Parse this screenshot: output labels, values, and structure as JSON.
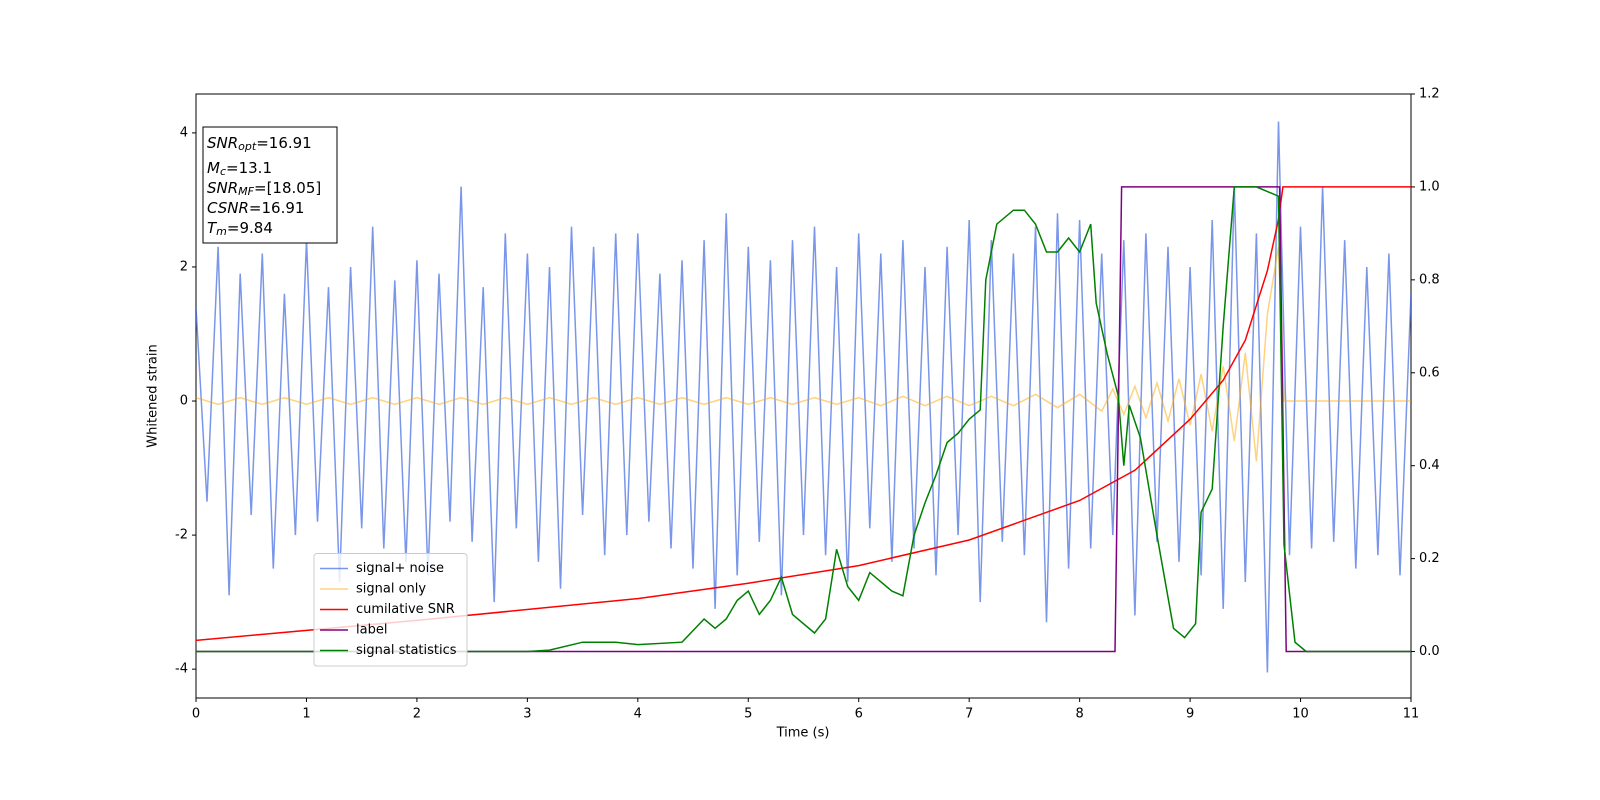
{
  "chart_data": {
    "type": "line",
    "x_label": "Time (s)",
    "y_label": "Whitened strain",
    "xlim": [
      0,
      11
    ],
    "xticks": [
      0,
      1,
      2,
      3,
      4,
      5,
      6,
      7,
      8,
      9,
      10,
      11
    ],
    "ylim": [
      -4.43,
      4.58
    ],
    "yticks": [
      -4,
      -2,
      0,
      2,
      4
    ],
    "y2lim": [
      -0.1,
      1.2
    ],
    "y2ticks": [
      {
        "value": 0,
        "label": "0.0"
      },
      0.2,
      0.4,
      0.6,
      0.8,
      {
        "value": 1,
        "label": "1.0"
      },
      1.2
    ],
    "legend": "lower left",
    "annotation": [
      {
        "name": "SNR",
        "sub": "opt",
        "text": "=16.91"
      },
      {
        "name": "M",
        "sub": "c",
        "text": "=13.1"
      },
      {
        "name": "SNR",
        "sub": "MF",
        "text": "=[18.05]"
      },
      {
        "name": "CSNR",
        "text": "=16.91"
      },
      {
        "name": "T",
        "sub": "m",
        "text": "=9.84"
      }
    ],
    "series": [
      {
        "name": "signal+ noise",
        "color": "#4169e1",
        "alpha": 0.7,
        "axis": "y",
        "x": [
          0,
          0.1,
          0.2,
          0.3,
          0.4,
          0.5,
          0.6,
          0.7,
          0.8,
          0.9,
          1,
          1.1,
          1.2,
          1.3,
          1.4,
          1.5,
          1.6,
          1.7,
          1.8,
          1.9,
          2,
          2.1,
          2.2,
          2.3,
          2.4,
          2.5,
          2.6,
          2.7,
          2.8,
          2.9,
          3,
          3.1,
          3.2,
          3.3,
          3.4,
          3.5,
          3.6,
          3.7,
          3.8,
          3.9,
          4,
          4.1,
          4.2,
          4.3,
          4.4,
          4.5,
          4.6,
          4.7,
          4.8,
          4.9,
          5,
          5.1,
          5.2,
          5.3,
          5.4,
          5.5,
          5.6,
          5.7,
          5.8,
          5.9,
          6,
          6.1,
          6.2,
          6.3,
          6.4,
          6.5,
          6.6,
          6.7,
          6.8,
          6.9,
          7,
          7.1,
          7.2,
          7.3,
          7.4,
          7.5,
          7.6,
          7.7,
          7.8,
          7.9,
          8,
          8.1,
          8.2,
          8.3,
          8.4,
          8.5,
          8.6,
          8.7,
          8.8,
          8.9,
          9,
          9.1,
          9.2,
          9.3,
          9.4,
          9.5,
          9.6,
          9.7,
          9.8,
          9.9,
          10,
          10.1,
          10.2,
          10.3,
          10.4,
          10.5,
          10.6,
          10.7,
          10.8,
          10.9,
          11
        ],
        "values": [
          1.4,
          -1.5,
          2.3,
          -2.9,
          1.9,
          -1.7,
          2.2,
          -2.5,
          1.6,
          -2.0,
          2.4,
          -1.8,
          1.7,
          -2.7,
          2.0,
          -1.9,
          2.6,
          -2.2,
          1.8,
          -2.4,
          2.1,
          -2.6,
          1.9,
          -1.8,
          3.2,
          -2.1,
          1.7,
          -3.0,
          2.5,
          -1.9,
          2.2,
          -2.4,
          2.0,
          -2.8,
          2.6,
          -1.7,
          2.3,
          -2.3,
          2.5,
          -2.0,
          2.5,
          -1.8,
          1.9,
          -2.2,
          2.1,
          -2.5,
          2.4,
          -3.1,
          2.8,
          -2.6,
          2.3,
          -2.1,
          2.1,
          -2.9,
          2.4,
          -2.0,
          2.6,
          -2.3,
          2.0,
          -2.7,
          2.5,
          -1.9,
          2.2,
          -2.4,
          2.4,
          -2.2,
          2.0,
          -2.6,
          2.3,
          -2.0,
          2.7,
          -3.0,
          2.4,
          -2.1,
          2.2,
          -2.3,
          2.6,
          -3.3,
          2.8,
          -2.5,
          2.7,
          -2.2,
          2.2,
          -2.0,
          2.4,
          -3.2,
          2.5,
          -2.1,
          2.3,
          -2.4,
          2.0,
          -2.6,
          2.7,
          -3.1,
          3.2,
          -2.7,
          2.5,
          -4.05,
          4.17,
          -2.3,
          2.6,
          -2.2,
          3.2,
          -2.1,
          2.4,
          -2.5,
          2.0,
          -2.3,
          2.2,
          -2.6,
          1.6
        ]
      },
      {
        "name": "signal only",
        "color": "#ffa500",
        "alpha": 0.5,
        "axis": "y",
        "x": [
          0,
          0.2,
          0.4,
          0.6,
          0.8,
          1,
          1.2,
          1.4,
          1.6,
          1.8,
          2,
          2.2,
          2.4,
          2.6,
          2.8,
          3,
          3.2,
          3.4,
          3.6,
          3.8,
          4,
          4.2,
          4.4,
          4.6,
          4.8,
          5,
          5.2,
          5.4,
          5.6,
          5.8,
          6,
          6.2,
          6.4,
          6.6,
          6.8,
          7,
          7.2,
          7.4,
          7.6,
          7.8,
          8,
          8.2,
          8.3,
          8.4,
          8.5,
          8.6,
          8.7,
          8.8,
          8.9,
          9,
          9.1,
          9.2,
          9.3,
          9.4,
          9.5,
          9.6,
          9.7,
          9.8,
          9.85,
          11
        ],
        "values": [
          0.05,
          -0.05,
          0.05,
          -0.05,
          0.05,
          -0.05,
          0.05,
          -0.05,
          0.05,
          -0.05,
          0.05,
          -0.05,
          0.05,
          -0.05,
          0.05,
          -0.05,
          0.05,
          -0.05,
          0.05,
          -0.05,
          0.05,
          -0.05,
          0.05,
          -0.05,
          0.05,
          -0.05,
          0.05,
          -0.05,
          0.05,
          -0.05,
          0.05,
          -0.07,
          0.07,
          -0.07,
          0.07,
          -0.07,
          0.07,
          -0.07,
          0.1,
          -0.1,
          0.1,
          -0.15,
          0.18,
          -0.2,
          0.22,
          -0.25,
          0.27,
          -0.3,
          0.33,
          -0.36,
          0.4,
          -0.45,
          0.52,
          -0.6,
          0.72,
          -0.9,
          1.3,
          2.3,
          0,
          0
        ]
      },
      {
        "name": "cumilative SNR",
        "color": "#ff0000",
        "alpha": 1,
        "axis": "y2",
        "x": [
          0,
          2,
          4,
          5,
          6,
          7,
          8,
          8.5,
          9,
          9.3,
          9.5,
          9.7,
          9.8,
          9.84,
          11
        ],
        "values": [
          0.024,
          0.067,
          0.114,
          0.147,
          0.185,
          0.24,
          0.325,
          0.39,
          0.5,
          0.584,
          0.67,
          0.82,
          0.93,
          1.0,
          1.0
        ]
      },
      {
        "name": "label",
        "color": "#800080",
        "alpha": 1,
        "axis": "y2",
        "x": [
          0,
          8.32,
          8.38,
          9.81,
          9.87,
          11
        ],
        "values": [
          0,
          0,
          1,
          1,
          0,
          0
        ]
      },
      {
        "name": "signal statistics",
        "color": "#008000",
        "alpha": 1,
        "axis": "y2",
        "x": [
          0,
          3,
          3.2,
          3.5,
          3.8,
          4.0,
          4.4,
          4.6,
          4.7,
          4.8,
          4.9,
          5.0,
          5.1,
          5.2,
          5.3,
          5.4,
          5.6,
          5.7,
          5.8,
          5.9,
          6.0,
          6.1,
          6.3,
          6.4,
          6.5,
          6.6,
          6.7,
          6.8,
          6.9,
          7.0,
          7.1,
          7.15,
          7.25,
          7.4,
          7.5,
          7.6,
          7.7,
          7.8,
          7.9,
          8.0,
          8.1,
          8.15,
          8.25,
          8.35,
          8.4,
          8.45,
          8.55,
          8.7,
          8.85,
          8.95,
          9.05,
          9.1,
          9.2,
          9.3,
          9.4,
          9.6,
          9.8,
          9.85,
          9.95,
          10.05,
          11
        ],
        "values": [
          0,
          0,
          0.003,
          0.02,
          0.02,
          0.015,
          0.02,
          0.07,
          0.05,
          0.07,
          0.11,
          0.13,
          0.08,
          0.11,
          0.16,
          0.08,
          0.04,
          0.07,
          0.22,
          0.14,
          0.11,
          0.17,
          0.13,
          0.12,
          0.25,
          0.32,
          0.38,
          0.45,
          0.47,
          0.5,
          0.52,
          0.8,
          0.92,
          0.95,
          0.95,
          0.92,
          0.86,
          0.86,
          0.89,
          0.86,
          0.92,
          0.75,
          0.64,
          0.55,
          0.4,
          0.53,
          0.46,
          0.25,
          0.05,
          0.03,
          0.06,
          0.3,
          0.35,
          0.7,
          1.0,
          1.0,
          0.98,
          0.23,
          0.02,
          0,
          0
        ]
      }
    ]
  }
}
